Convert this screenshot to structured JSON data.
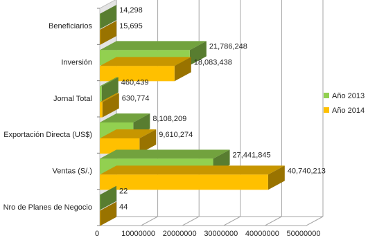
{
  "chart_data": {
    "type": "bar",
    "orientation": "horizontal",
    "style": "3d",
    "categories": [
      "Beneficiarios",
      "Inversión",
      "Jornal Total",
      "Exportación Directa (US$)",
      "Ventas (S/.)",
      "Nro de Planes de Negocio"
    ],
    "series": [
      {
        "name": "Año 2013",
        "color": "#92d050",
        "values": [
          14298,
          21786248,
          460439,
          8108209,
          27441845,
          22
        ],
        "labels": [
          "14,298",
          "21,786,248",
          "460,439",
          "8,108,209",
          "27,441,845",
          "22"
        ]
      },
      {
        "name": "Año 2014",
        "color": "#ffc000",
        "values": [
          15695,
          18083438,
          630774,
          9610274,
          40740213,
          44
        ],
        "labels": [
          "15,695",
          "18,083,438",
          "630,774",
          "9,610,274",
          "40,740,213",
          "44"
        ]
      }
    ],
    "x_ticks": [
      "0",
      "10000000",
      "20000000",
      "30000000",
      "40000000",
      "50000000"
    ],
    "xlim": [
      0,
      50000000
    ],
    "grid": true,
    "legend_position": "right"
  }
}
